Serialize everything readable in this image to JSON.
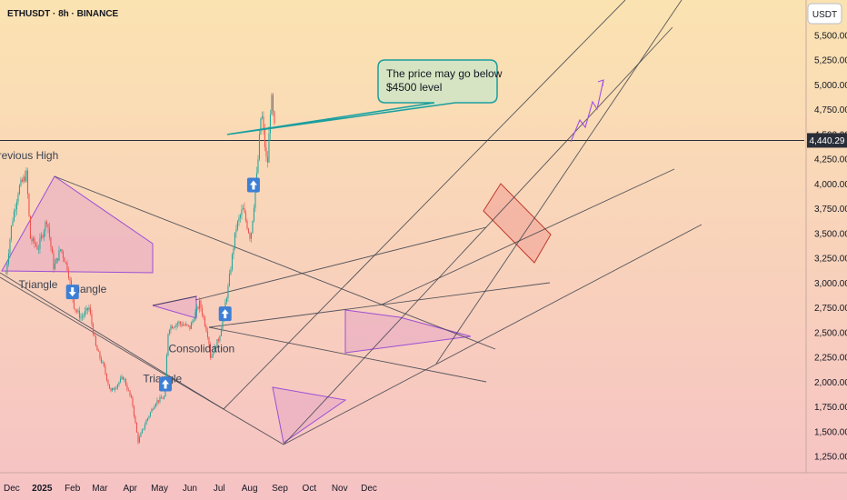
{
  "header": {
    "symbol_label": "ETHUSDT · 8h · BINANCE"
  },
  "currency_badge": "USDT",
  "colors": {
    "bg_top": "#fbe3b1",
    "bg_bottom": "#f6c2c4",
    "up_candle": "#26a69a",
    "down_candle": "#ef5350",
    "trendline": "#3a3f4b",
    "triangle_fill": "#e7a8c4",
    "triangle_stroke": "#9c4fd6",
    "flag_fill": "#f2a79a",
    "flag_stroke": "#c0392b",
    "callout_fill": "#d6e4c3",
    "callout_stroke": "#1b9e9e",
    "arrow_badge": "#3d7fd6",
    "projection": "#a050e6"
  },
  "chart_data": {
    "type": "candlestick",
    "title": "",
    "xlabel": "",
    "ylabel": "",
    "y_scale": "linear",
    "ylim": [
      1100,
      5800
    ],
    "grid": false,
    "x_tick_labels": [
      "Dec",
      "2025",
      "Feb",
      "Mar",
      "Apr",
      "May",
      "Jun",
      "Jul",
      "Aug",
      "Sep",
      "Oct",
      "Nov",
      "Dec"
    ],
    "y_tick_values": [
      1250,
      1500,
      1750,
      2000,
      2250,
      2500,
      2750,
      3000,
      3250,
      3500,
      3750,
      4000,
      4250,
      4500,
      4750,
      5000,
      5250,
      5500
    ],
    "y_tick_labels": [
      "1,250.00",
      "1,500.00",
      "1,750.00",
      "2,000.00",
      "2,250.00",
      "2,500.00",
      "2,750.00",
      "3,000.00",
      "3,250.00",
      "3,500.00",
      "3,750.00",
      "4,000.00",
      "4,250.00",
      "4,500.00",
      "4,750.00",
      "5,000.00",
      "5,250.00",
      "5,500.00"
    ],
    "current_price": 4440.29,
    "current_price_label": "4,440.29",
    "price_anchors": [
      {
        "date": "2024-11-25",
        "price": 3100
      },
      {
        "date": "2024-12-01",
        "price": 3600
      },
      {
        "date": "2024-12-08",
        "price": 3950
      },
      {
        "date": "2024-12-16",
        "price": 4100
      },
      {
        "date": "2024-12-20",
        "price": 3450
      },
      {
        "date": "2024-12-28",
        "price": 3350
      },
      {
        "date": "2025-01-06",
        "price": 3650
      },
      {
        "date": "2025-01-13",
        "price": 3150
      },
      {
        "date": "2025-01-20",
        "price": 3350
      },
      {
        "date": "2025-01-27",
        "price": 3150
      },
      {
        "date": "2025-02-03",
        "price": 2750
      },
      {
        "date": "2025-02-10",
        "price": 2650
      },
      {
        "date": "2025-02-18",
        "price": 2750
      },
      {
        "date": "2025-02-25",
        "price": 2350
      },
      {
        "date": "2025-03-05",
        "price": 2150
      },
      {
        "date": "2025-03-12",
        "price": 1900
      },
      {
        "date": "2025-03-25",
        "price": 2050
      },
      {
        "date": "2025-04-03",
        "price": 1800
      },
      {
        "date": "2025-04-09",
        "price": 1400
      },
      {
        "date": "2025-04-17",
        "price": 1600
      },
      {
        "date": "2025-04-27",
        "price": 1800
      },
      {
        "date": "2025-05-06",
        "price": 1850
      },
      {
        "date": "2025-05-10",
        "price": 2550
      },
      {
        "date": "2025-05-20",
        "price": 2600
      },
      {
        "date": "2025-06-01",
        "price": 2550
      },
      {
        "date": "2025-06-11",
        "price": 2800
      },
      {
        "date": "2025-06-20",
        "price": 2450
      },
      {
        "date": "2025-06-22",
        "price": 2250
      },
      {
        "date": "2025-07-01",
        "price": 2450
      },
      {
        "date": "2025-07-10",
        "price": 2950
      },
      {
        "date": "2025-07-18",
        "price": 3550
      },
      {
        "date": "2025-07-25",
        "price": 3750
      },
      {
        "date": "2025-08-02",
        "price": 3450
      },
      {
        "date": "2025-08-09",
        "price": 4150
      },
      {
        "date": "2025-08-13",
        "price": 4750
      },
      {
        "date": "2025-08-19",
        "price": 4150
      },
      {
        "date": "2025-08-23",
        "price": 4900
      },
      {
        "date": "2025-08-27",
        "price": 4500
      }
    ],
    "horizontal_level": 4440.29,
    "annotations": [
      {
        "text": "Previous High",
        "date": "2024-12-14",
        "price": 4250
      },
      {
        "text": "Triangle",
        "date": "2024-12-28",
        "price": 2950
      },
      {
        "text": "Triangle",
        "date": "2025-02-16",
        "price": 2900
      },
      {
        "text": "Triangle",
        "date": "2025-05-04",
        "price": 2000
      },
      {
        "text": "Consolidation",
        "date": "2025-06-13",
        "price": 2300
      }
    ],
    "callout": {
      "line1": "The price may go below",
      "line2": "$4500 level",
      "pointer_date": "2025-07-09",
      "pointer_price": 4500
    },
    "signal_arrows": [
      {
        "direction": "down",
        "date": "2025-02-01",
        "price": 2910
      },
      {
        "direction": "up",
        "date": "2025-05-07",
        "price": 1980
      },
      {
        "direction": "up",
        "date": "2025-07-07",
        "price": 2690
      },
      {
        "direction": "up",
        "date": "2025-08-05",
        "price": 3990
      }
    ]
  }
}
